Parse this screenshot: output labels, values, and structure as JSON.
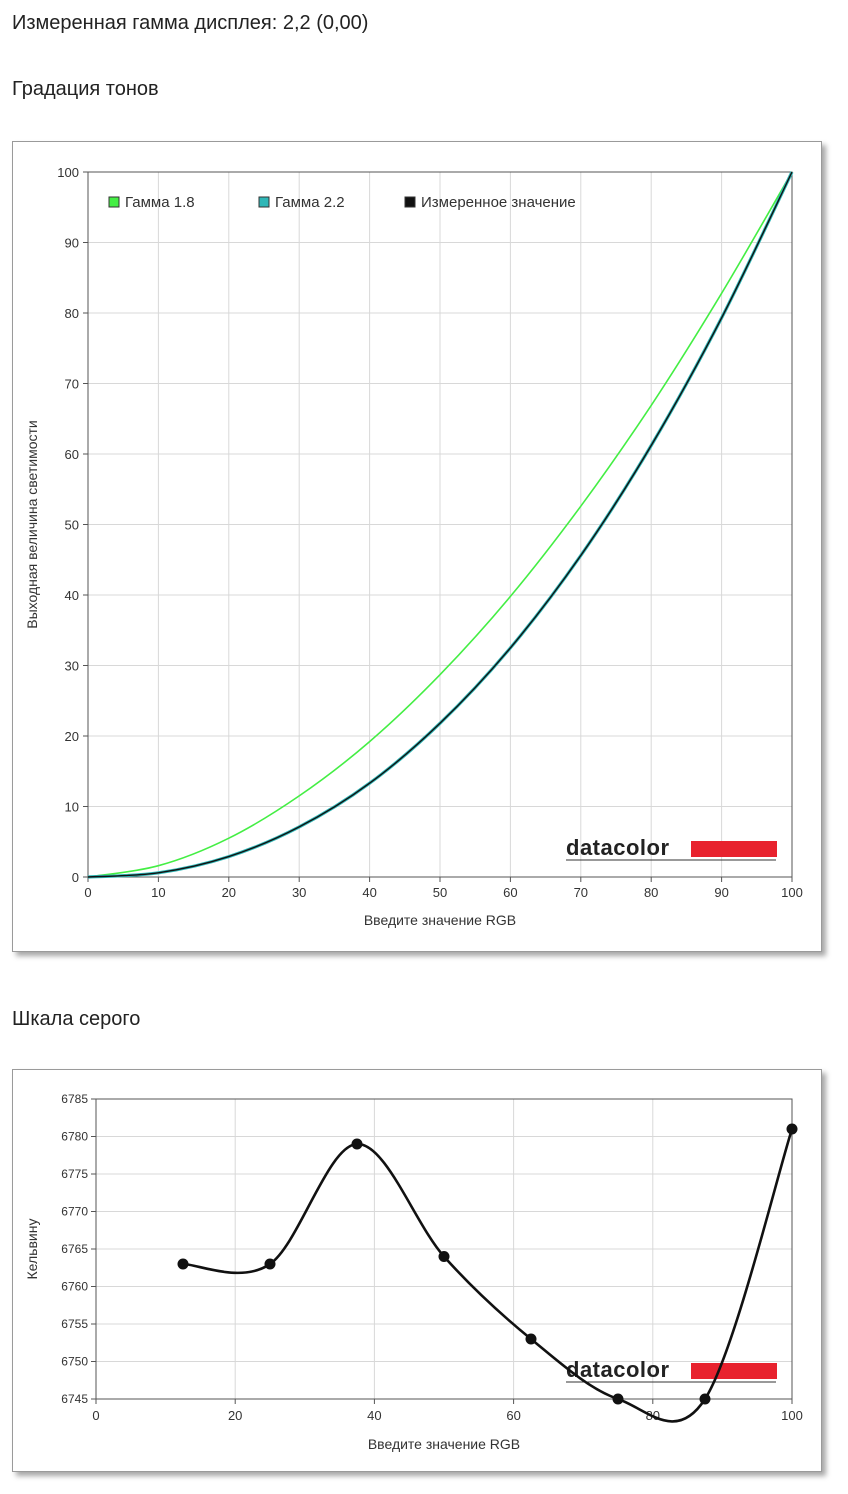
{
  "header": {
    "measured_gamma": "Измеренная гамма дисплея: 2,2 (0,00)",
    "section1_title": "Градация тонов",
    "section2_title": "Шкала серого"
  },
  "colors": {
    "gamma18": "#44ee44",
    "gamma22": "#2fb7b7",
    "measured": "#111111",
    "grid": "#d8d8d8",
    "logo_bar": "#e8222e"
  },
  "logo_text": "datacolor",
  "chart_data": [
    {
      "type": "line",
      "xlabel": "Введите значение RGB",
      "ylabel": "Выходная величина светимости",
      "xlim": [
        0,
        100
      ],
      "ylim": [
        0,
        100
      ],
      "xticks": [
        0,
        10,
        20,
        30,
        40,
        50,
        60,
        70,
        80,
        90,
        100
      ],
      "yticks": [
        0,
        10,
        20,
        30,
        40,
        50,
        60,
        70,
        80,
        90,
        100
      ],
      "grid": true,
      "legend_position": "top-left",
      "series": [
        {
          "name": "Гамма 1.8",
          "color": "#44ee44",
          "x": [
            0,
            10,
            20,
            30,
            40,
            50,
            60,
            70,
            80,
            90,
            100
          ],
          "y": [
            0,
            1.6,
            5.5,
            11.5,
            19.2,
            28.7,
            39.8,
            52.6,
            66.9,
            82.8,
            100
          ]
        },
        {
          "name": "Гамма 2.2",
          "color": "#2fb7b7",
          "x": [
            0,
            10,
            20,
            30,
            40,
            50,
            60,
            70,
            80,
            90,
            100
          ],
          "y": [
            0,
            0.6,
            2.9,
            7.1,
            13.3,
            21.8,
            32.5,
            45.6,
            61.2,
            79.3,
            100
          ]
        },
        {
          "name": "Измеренное значение",
          "color": "#111111",
          "x": [
            0,
            10,
            20,
            30,
            40,
            50,
            60,
            70,
            80,
            90,
            100
          ],
          "y": [
            0,
            0.6,
            2.9,
            7.1,
            13.3,
            21.8,
            32.5,
            45.6,
            61.2,
            79.3,
            100
          ]
        }
      ]
    },
    {
      "type": "line",
      "xlabel": "Введите значение RGB",
      "ylabel": "Кельвину",
      "xlim": [
        0,
        100
      ],
      "ylim": [
        6745,
        6785
      ],
      "xticks": [
        0,
        20,
        40,
        60,
        80,
        100
      ],
      "yticks": [
        6745,
        6750,
        6755,
        6760,
        6765,
        6770,
        6775,
        6780,
        6785
      ],
      "grid": true,
      "markers": true,
      "x": [
        12.5,
        25,
        37.5,
        50,
        62.5,
        75,
        87.5,
        100
      ],
      "y": [
        6763,
        6763,
        6779,
        6764,
        6753,
        6745,
        6745,
        6781
      ]
    }
  ]
}
